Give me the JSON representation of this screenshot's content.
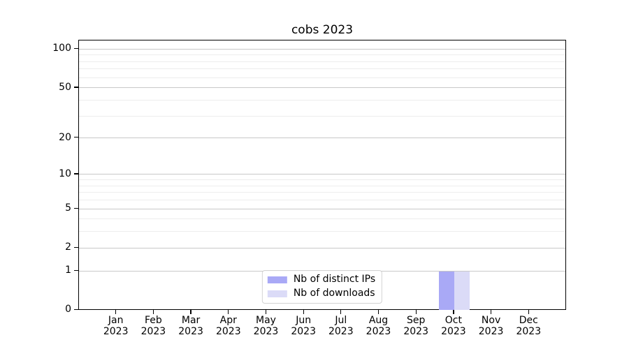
{
  "chart_data": {
    "type": "bar",
    "title": "cobs 2023",
    "categories": [
      "Jan 2023",
      "Feb 2023",
      "Mar 2023",
      "Apr 2023",
      "May 2023",
      "Jun 2023",
      "Jul 2023",
      "Aug 2023",
      "Sep 2023",
      "Oct 2023",
      "Nov 2023",
      "Dec 2023"
    ],
    "series": [
      {
        "name": "Nb of distinct IPs",
        "color": "#a9a9f6",
        "values": [
          0,
          0,
          0,
          0,
          0,
          0,
          0,
          0,
          0,
          1,
          0,
          0
        ]
      },
      {
        "name": "Nb of downloads",
        "color": "#dbdbf7",
        "values": [
          0,
          0,
          0,
          0,
          0,
          0,
          0,
          0,
          0,
          1,
          0,
          0
        ]
      }
    ],
    "xlabel": "",
    "ylabel": "",
    "yscale": "log1p",
    "ylim": [
      0,
      118
    ],
    "y_ticks": [
      0,
      1,
      2,
      5,
      10,
      20,
      50,
      100
    ],
    "y_minor_gridlines": [
      3,
      4,
      6,
      7,
      8,
      9,
      30,
      40,
      60,
      70,
      80,
      90
    ],
    "grid": true,
    "legend_position": "lower center",
    "colors": {
      "grid_major": "#c8c8c8",
      "grid_minor": "#ededed",
      "axis": "#000000",
      "background": "#ffffff"
    }
  }
}
